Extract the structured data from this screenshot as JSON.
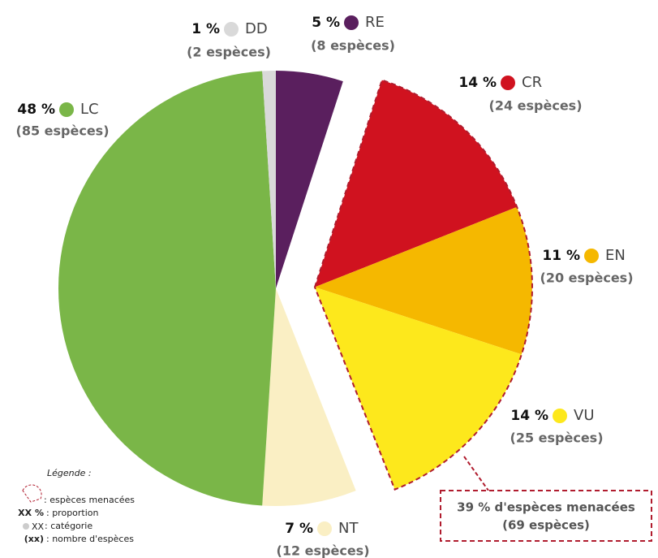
{
  "chart_data": {
    "type": "pie",
    "categories": [
      "RE",
      "CR",
      "EN",
      "VU",
      "NT",
      "LC",
      "DD"
    ],
    "values": [
      5,
      14,
      11,
      14,
      7,
      48,
      1
    ],
    "value_labels": [
      "5 %",
      "14 %",
      "11 %",
      "14 %",
      "7 %",
      "48 %",
      "1 %"
    ],
    "counts": [
      8,
      24,
      20,
      25,
      12,
      85,
      2
    ],
    "count_labels": [
      "(8 espèces)",
      "(24 espèces)",
      "(20 espèces)",
      "(25 espèces)",
      "(12 espèces)",
      "(85 espèces)",
      "(2 espèces)"
    ],
    "colors": [
      "#5a1f5e",
      "#d0121f",
      "#f5b800",
      "#fde81c",
      "#faefc4",
      "#7ab648",
      "#d9d9d9"
    ],
    "exploded": [
      "CR",
      "EN",
      "VU"
    ],
    "annotation": {
      "lines": [
        "39 % d'espèces menacées",
        "(69 espèces)"
      ],
      "color": "#b01c2e"
    },
    "legend_key": {
      "title": "Légende :",
      "items": [
        {
          "text": ": espèces menacées"
        },
        {
          "symbol": "XX %",
          "text": ": proportion"
        },
        {
          "symbol": "XX",
          "text": ": catégorie"
        },
        {
          "symbol": "(xx)",
          "text": ": nombre d'espèces"
        }
      ]
    }
  }
}
